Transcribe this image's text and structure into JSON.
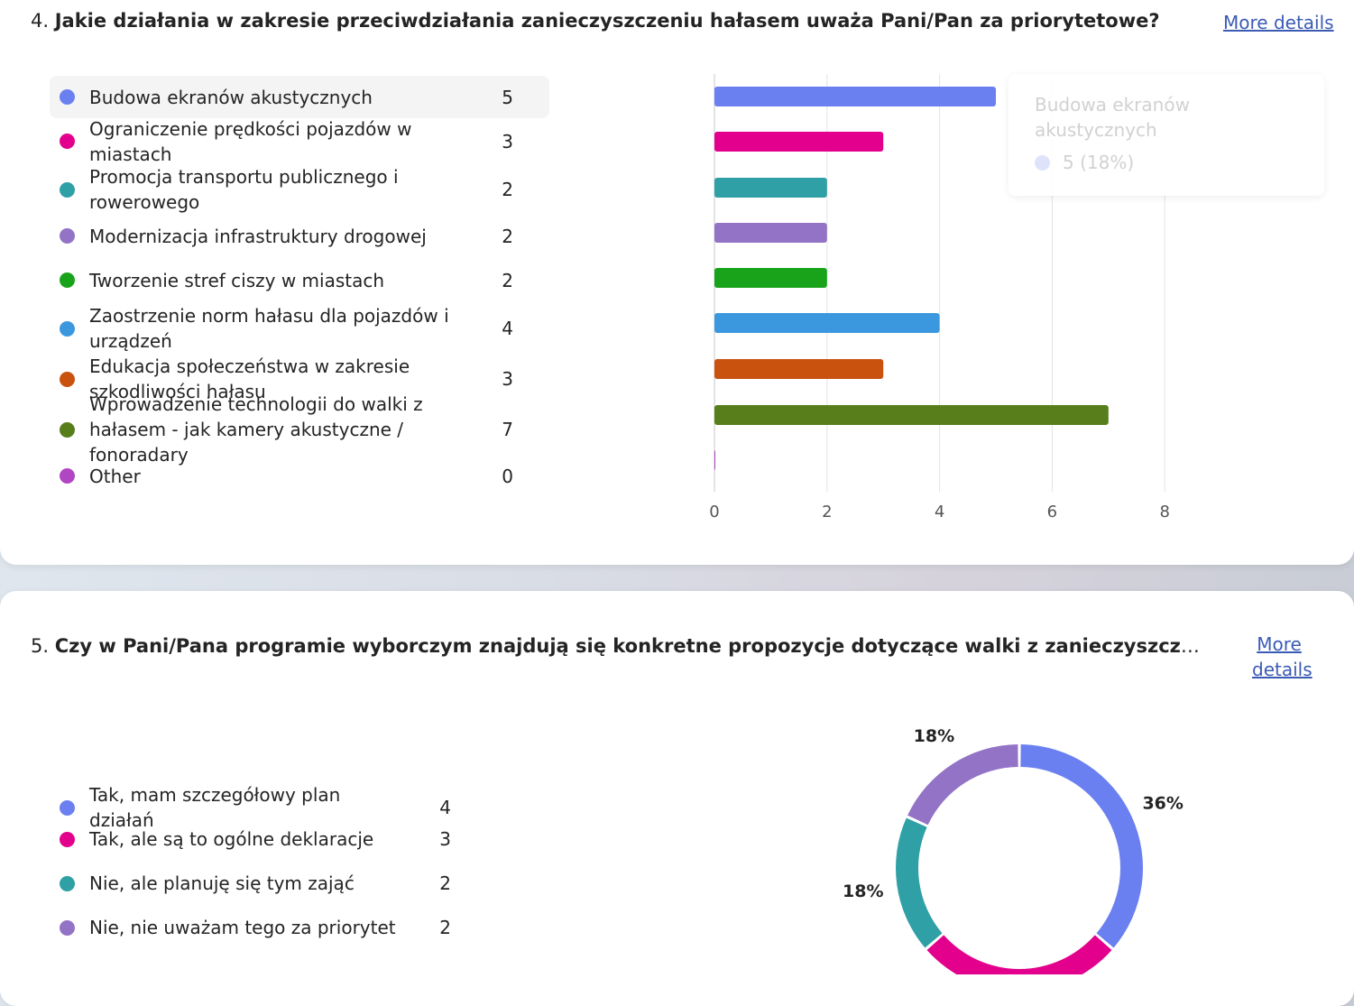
{
  "q4": {
    "number": "4.",
    "title": "Jakie działania w zakresie przeciwdziałania zanieczyszczeniu hałasem uważa Pani/Pan za priorytetowe?",
    "more_details": "More details",
    "options": [
      {
        "label": "Budowa ekranów akustycznych",
        "count": "5",
        "color": "#6b80f0"
      },
      {
        "label": "Ograniczenie prędkości pojazdów w miastach",
        "count": "3",
        "color": "#e3008c"
      },
      {
        "label": "Promocja transportu publicznego i rowerowego",
        "count": "2",
        "color": "#2ea0a6"
      },
      {
        "label": "Modernizacja infrastruktury drogowej",
        "count": "2",
        "color": "#9373c6"
      },
      {
        "label": "Tworzenie stref ciszy w miastach",
        "count": "2",
        "color": "#18a31a"
      },
      {
        "label": "Zaostrzenie norm hałasu dla pojazdów i urządzeń",
        "count": "4",
        "color": "#3b98df"
      },
      {
        "label": "Edukacja społeczeństwa w zakresie szkodliwości hałasu",
        "count": "3",
        "color": "#c9520f"
      },
      {
        "label": "Wprowadzenie technologii do walki z hałasem - jak kamery akustyczne / fonoradary",
        "count": "7",
        "color": "#577e1a"
      },
      {
        "label": "Other",
        "count": "0",
        "color": "#b146c2"
      }
    ],
    "tooltip": {
      "title": "Budowa ekranów akustycznych",
      "value": "5 (18%)"
    }
  },
  "q5": {
    "number": "5.",
    "title": "Czy w Pani/Pana programie wyborczym znajdują się konkretne propozycje dotyczące walki z zanieczyszczenie...",
    "more_details_line1": "More",
    "more_details_line2": "details",
    "options": [
      {
        "label": "Tak, mam szczegółowy plan działań",
        "count": "4",
        "color": "#6b80f0"
      },
      {
        "label": "Tak, ale są to ogólne deklaracje",
        "count": "3",
        "color": "#e3008c"
      },
      {
        "label": "Nie, ale planuję się tym zająć",
        "count": "2",
        "color": "#2ea0a6"
      },
      {
        "label": "Nie, nie uważam tego za priorytet",
        "count": "2",
        "color": "#9373c6"
      }
    ]
  },
  "chart_data": [
    {
      "type": "bar",
      "orientation": "horizontal",
      "categories": [
        "Budowa ekranów akustycznych",
        "Ograniczenie prędkości pojazdów w miastach",
        "Promocja transportu publicznego i rowerowego",
        "Modernizacja infrastruktury drogowej",
        "Tworzenie stref ciszy w miastach",
        "Zaostrzenie norm hałasu dla pojazdów i urządzeń",
        "Edukacja społeczeństwa w zakresie szkodliwości hałasu",
        "Wprowadzenie technologii do walki z hałasem - jak kamery akustyczne / fonoradary",
        "Other"
      ],
      "values": [
        5,
        3,
        2,
        2,
        2,
        4,
        3,
        7,
        0
      ],
      "colors": [
        "#6b80f0",
        "#e3008c",
        "#2ea0a6",
        "#9373c6",
        "#18a31a",
        "#3b98df",
        "#c9520f",
        "#577e1a",
        "#b146c2"
      ],
      "xlim": [
        0,
        8
      ],
      "xticks": [
        "0",
        "2",
        "4",
        "6",
        "8"
      ],
      "grid": true
    },
    {
      "type": "pie",
      "donut": true,
      "categories": [
        "Tak, mam szczegółowy plan działań",
        "Tak, ale są to ogólne deklaracje",
        "Nie, ale planuję się tym zająć",
        "Nie, nie uważam tego za priorytet"
      ],
      "values": [
        4,
        3,
        2,
        2
      ],
      "colors": [
        "#6b80f0",
        "#e3008c",
        "#2ea0a6",
        "#9373c6"
      ],
      "labels": [
        "36%",
        "",
        "18%",
        "18%"
      ]
    }
  ]
}
